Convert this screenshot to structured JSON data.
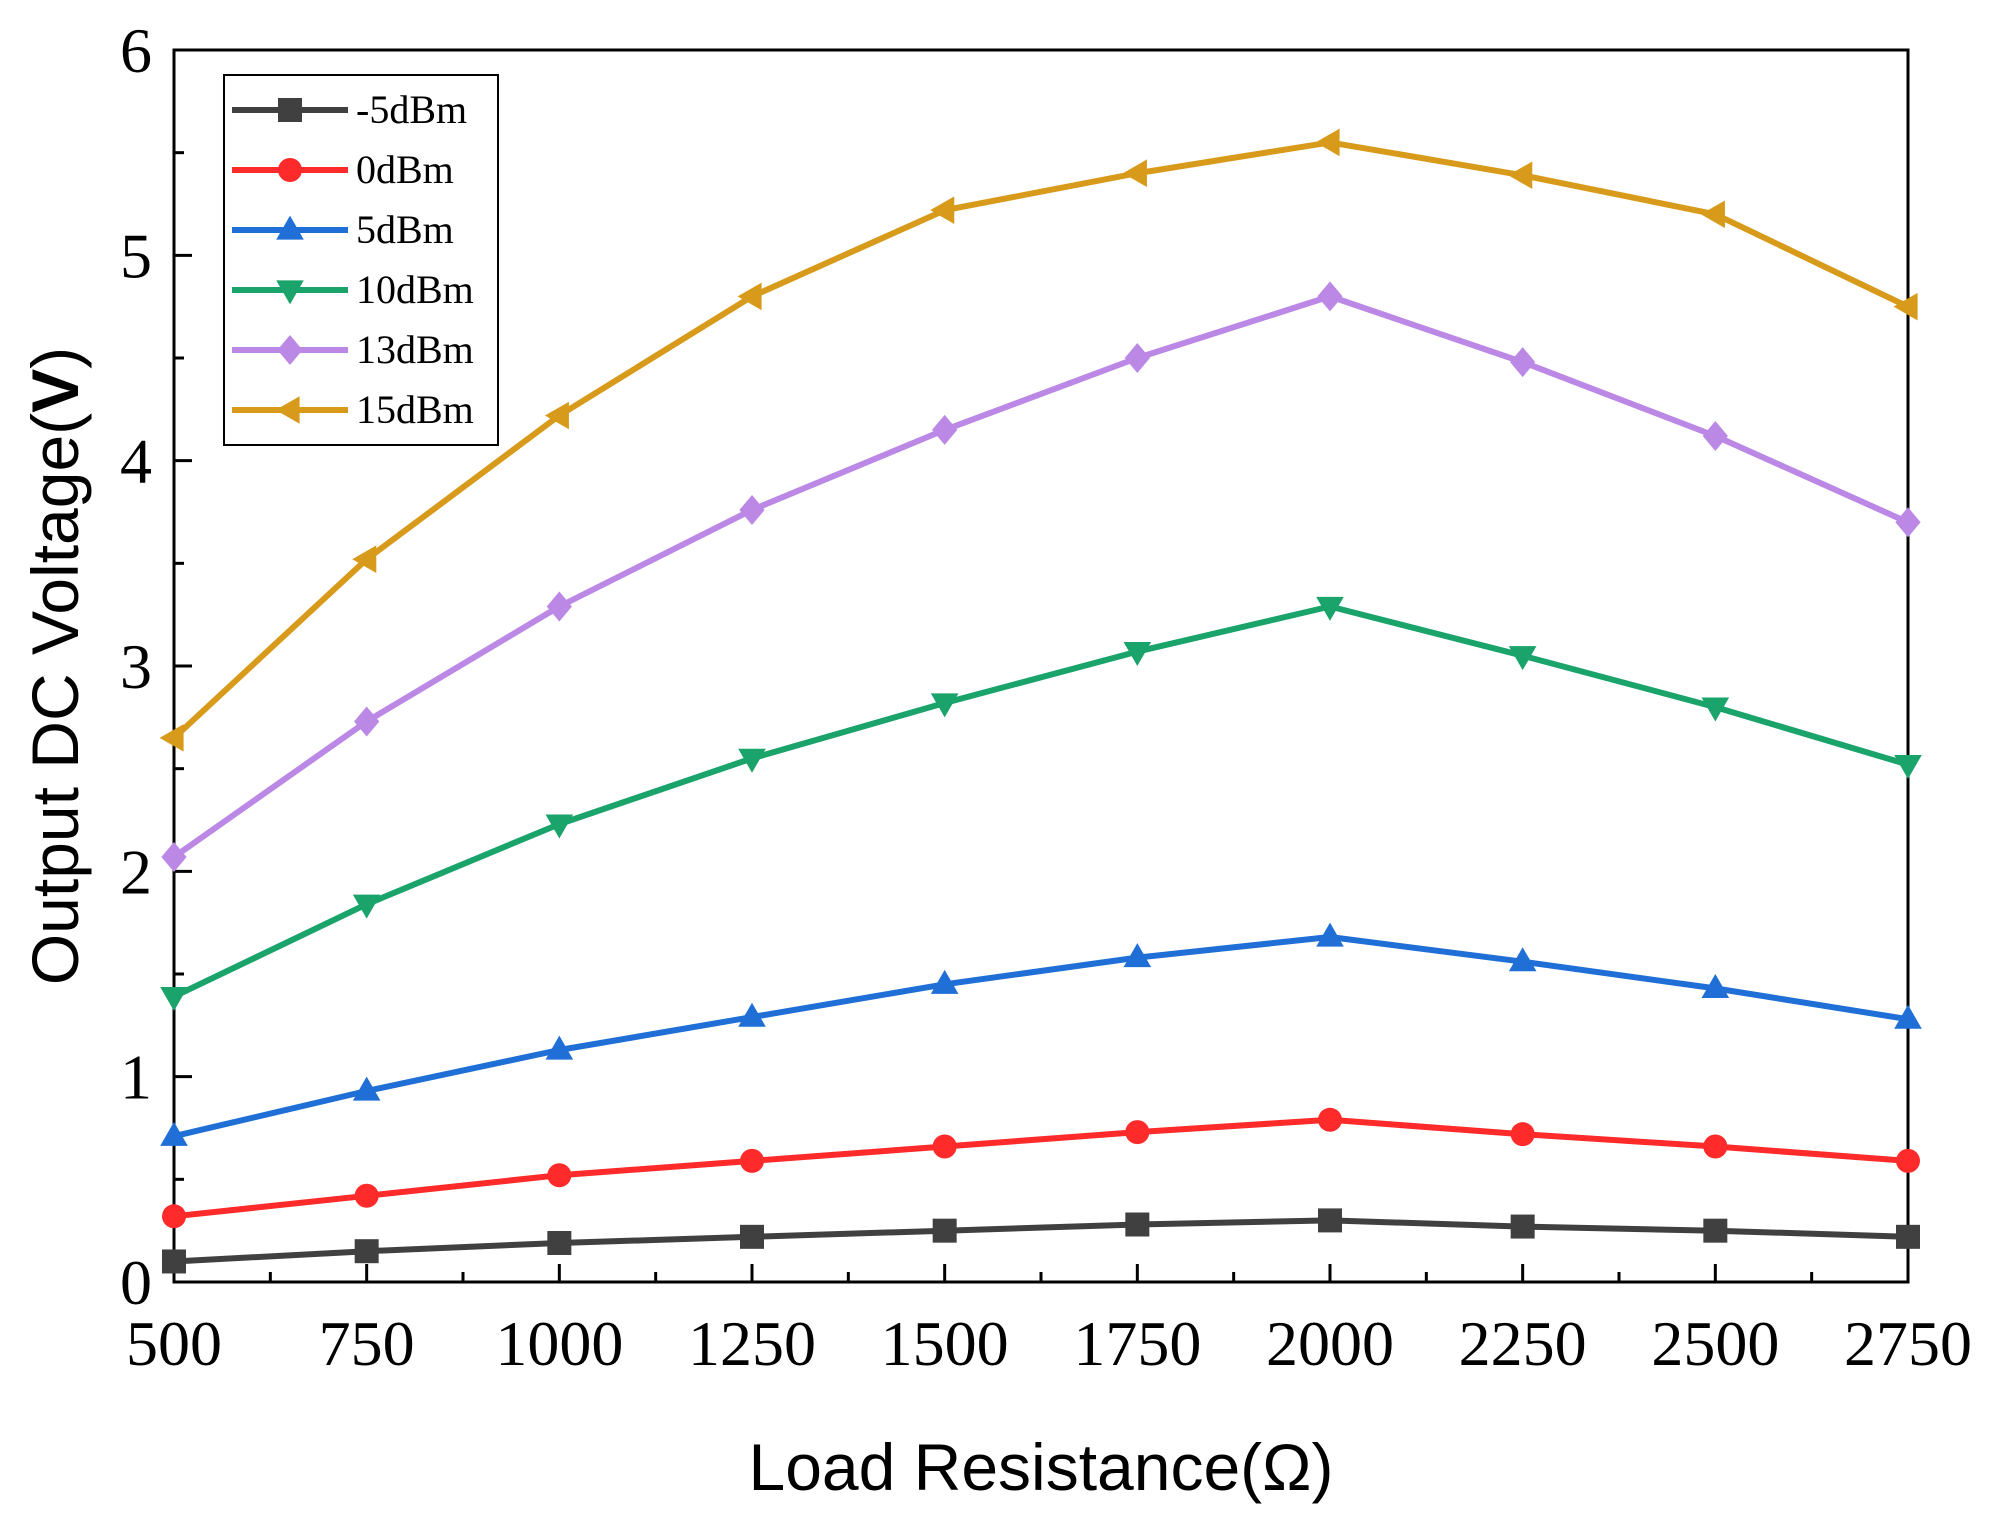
{
  "chart_data": {
    "type": "line",
    "title": "",
    "xlabel": "Load Resistance(Ω)",
    "ylabel_prefix": "Output DC Voltage(",
    "ylabel_unit": "V",
    "ylabel_suffix": ")",
    "xlim": [
      500,
      2750
    ],
    "ylim": [
      0,
      6
    ],
    "x_ticks": [
      500,
      750,
      1000,
      1250,
      1500,
      1750,
      2000,
      2250,
      2500,
      2750
    ],
    "y_ticks": [
      0,
      1,
      2,
      3,
      4,
      5,
      6
    ],
    "x": [
      500,
      750,
      1000,
      1250,
      1500,
      1750,
      2000,
      2250,
      2500,
      2750
    ],
    "legend_position": "top-left",
    "grid": false,
    "series": [
      {
        "name": "-5dBm",
        "color": "#404040",
        "marker": "square",
        "values": [
          0.1,
          0.15,
          0.19,
          0.22,
          0.25,
          0.28,
          0.3,
          0.27,
          0.25,
          0.22
        ]
      },
      {
        "name": "0dBm",
        "color": "#ff2a2a",
        "marker": "circle",
        "values": [
          0.32,
          0.42,
          0.52,
          0.59,
          0.66,
          0.73,
          0.79,
          0.72,
          0.66,
          0.59
        ]
      },
      {
        "name": "5dBm",
        "color": "#1f6fd6",
        "marker": "triangle-up",
        "values": [
          0.71,
          0.93,
          1.13,
          1.29,
          1.45,
          1.58,
          1.68,
          1.56,
          1.43,
          1.28
        ]
      },
      {
        "name": "10dBm",
        "color": "#1aa36a",
        "marker": "triangle-down",
        "values": [
          1.39,
          1.84,
          2.23,
          2.55,
          2.82,
          3.07,
          3.29,
          3.05,
          2.8,
          2.52
        ]
      },
      {
        "name": "13dBm",
        "color": "#bb88e6",
        "marker": "diamond",
        "values": [
          2.07,
          2.73,
          3.29,
          3.76,
          4.15,
          4.5,
          4.8,
          4.48,
          4.12,
          3.7
        ]
      },
      {
        "name": "15dBm",
        "color": "#d89a1a",
        "marker": "triangle-left",
        "values": [
          2.65,
          3.52,
          4.22,
          4.8,
          5.22,
          5.4,
          5.55,
          5.39,
          5.2,
          4.75
        ]
      }
    ]
  }
}
